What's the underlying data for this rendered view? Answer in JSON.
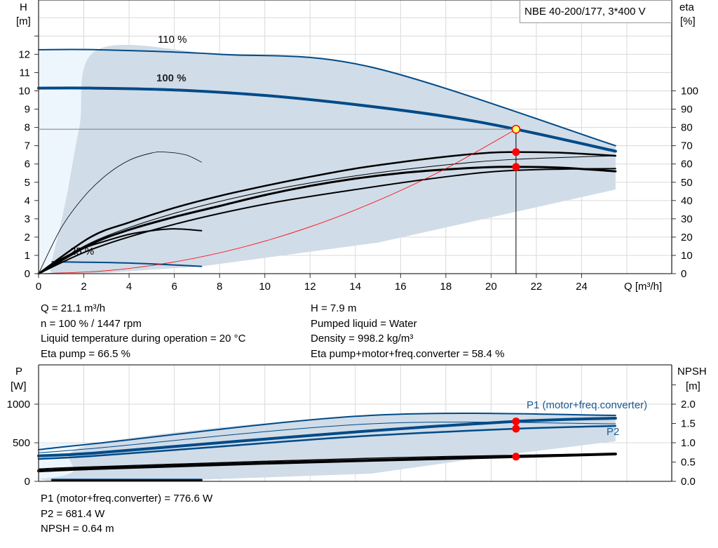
{
  "colors": {
    "blue": "#004a87",
    "band": "#d0dce8",
    "band_light": "#eef6fd",
    "grid": "#d9d9d9",
    "duty_point": "#ff0000",
    "op_point": "#ffff66",
    "system_curve": "#ff0000"
  },
  "chart_data": [
    {
      "type": "line",
      "title": "NBE 40-200/177, 3*400 V",
      "xlabel": "Q [m³/h]",
      "ylabel": [
        "H",
        "[m]"
      ],
      "y2label": [
        "eta",
        "[%]"
      ],
      "xlim": [
        0,
        28
      ],
      "ylim": [
        0,
        15
      ],
      "y2lim": [
        0,
        150
      ],
      "xticks": [
        0,
        2,
        4,
        6,
        8,
        10,
        12,
        14,
        16,
        18,
        20,
        22,
        24
      ],
      "yticks": [
        0,
        1,
        2,
        3,
        4,
        5,
        6,
        7,
        8,
        9,
        10,
        11,
        12
      ],
      "y2ticks": [
        0,
        10,
        20,
        30,
        40,
        50,
        60,
        70,
        80,
        90,
        100
      ],
      "grid": true,
      "series": [
        {
          "name": "110 %",
          "axis": "H",
          "color": "#004a87",
          "width": 2,
          "points": [
            [
              0,
              12.25
            ],
            [
              2.6,
              12.25
            ],
            [
              8,
              12.0
            ],
            [
              14.7,
              11.3
            ],
            [
              25.5,
              7.0
            ]
          ]
        },
        {
          "name": "100 %",
          "axis": "H",
          "color": "#004a87",
          "width": 4,
          "points": [
            [
              0,
              10.15
            ],
            [
              2.4,
              10.15
            ],
            [
              6,
              10.05
            ],
            [
              10,
              9.75
            ],
            [
              14,
              9.25
            ],
            [
              18,
              8.6
            ],
            [
              21.1,
              7.9
            ],
            [
              25.5,
              6.7
            ]
          ]
        },
        {
          "name": "25 %",
          "axis": "H",
          "color": "#004a87",
          "width": 2,
          "points": [
            [
              0.6,
              0.65
            ],
            [
              4,
              0.58
            ],
            [
              7.2,
              0.4
            ]
          ]
        },
        {
          "axis": "eta",
          "color": "#000",
          "width": 2.5,
          "points": [
            [
              0,
              0
            ],
            [
              2.3,
              20
            ],
            [
              4,
              28
            ],
            [
              6,
              36
            ],
            [
              8,
              42.5
            ],
            [
              10,
              48
            ],
            [
              12,
              53
            ],
            [
              14,
              57.5
            ],
            [
              16,
              61
            ],
            [
              18,
              64
            ],
            [
              20,
              66.2
            ],
            [
              21.1,
              66.5
            ],
            [
              23,
              66.2
            ],
            [
              25.5,
              64.5
            ]
          ]
        },
        {
          "axis": "eta",
          "color": "#000",
          "width": 1,
          "points": [
            [
              0,
              0
            ],
            [
              2.5,
              18
            ],
            [
              6,
              33
            ],
            [
              10,
              45
            ],
            [
              14,
              53.5
            ],
            [
              18,
              59.5
            ],
            [
              21,
              62.5
            ],
            [
              25.5,
              64.5
            ]
          ]
        },
        {
          "axis": "eta",
          "color": "#000",
          "width": 3,
          "points": [
            [
              0,
              0
            ],
            [
              2.3,
              16
            ],
            [
              4,
              24
            ],
            [
              6,
              31
            ],
            [
              8,
              37
            ],
            [
              10,
              43
            ],
            [
              12,
              48
            ],
            [
              14,
              52
            ],
            [
              16,
              55
            ],
            [
              18,
              57
            ],
            [
              20,
              58.3
            ],
            [
              21.1,
              58.4
            ],
            [
              23,
              58
            ],
            [
              25.5,
              56
            ]
          ]
        },
        {
          "axis": "eta",
          "color": "#000",
          "width": 2,
          "points": [
            [
              0,
              0
            ],
            [
              2.5,
              14
            ],
            [
              6,
              27
            ],
            [
              10,
              38
            ],
            [
              14,
              46
            ],
            [
              18,
              53
            ],
            [
              21,
              56.5
            ],
            [
              25.5,
              57.5
            ]
          ]
        },
        {
          "axis": "eta",
          "color": "#000",
          "width": 0.8,
          "points": [
            [
              0,
              0
            ],
            [
              1,
              25
            ],
            [
              2,
              42
            ],
            [
              3,
              54
            ],
            [
              4,
              62
            ],
            [
              5,
              66
            ],
            [
              5.6,
              66.5
            ],
            [
              6.5,
              65
            ],
            [
              7.2,
              61
            ]
          ]
        },
        {
          "axis": "eta",
          "color": "#000",
          "width": 2,
          "points": [
            [
              0,
              0
            ],
            [
              1,
              8
            ],
            [
              2,
              14
            ],
            [
              3,
              18
            ],
            [
              4,
              21.5
            ],
            [
              5,
              23.5
            ],
            [
              6,
              24.5
            ],
            [
              7.2,
              23.5
            ]
          ]
        }
      ],
      "system_curve": {
        "axis": "H",
        "points": [
          [
            0,
            0
          ],
          [
            3,
            0.16
          ],
          [
            6,
            0.64
          ],
          [
            9,
            1.44
          ],
          [
            12,
            2.56
          ],
          [
            15,
            4.0
          ],
          [
            18,
            5.75
          ],
          [
            21.1,
            7.9
          ]
        ]
      },
      "envelope": {
        "upper": [
          [
            0.5,
            0.2
          ],
          [
            1.2,
            4
          ],
          [
            1.8,
            8
          ],
          [
            2.6,
            12.25
          ],
          [
            8,
            12.0
          ],
          [
            14.7,
            11.3
          ],
          [
            25.5,
            7.0
          ]
        ],
        "lower": [
          [
            25.5,
            4.6
          ],
          [
            15,
            1.7
          ],
          [
            7.2,
            0.4
          ],
          [
            3,
            0.05
          ],
          [
            0.6,
            0
          ]
        ]
      },
      "operating_point": {
        "Q": 21.1,
        "H": 7.9,
        "eta_pump": 66.5,
        "eta_total": 58.4
      }
    },
    {
      "type": "line",
      "ylabel": [
        "P",
        "[W]"
      ],
      "y2label": [
        "NPSH",
        "[m]"
      ],
      "xlim": [
        0,
        28
      ],
      "ylim": [
        0,
        1500
      ],
      "y2lim": [
        0,
        3
      ],
      "yticks": [
        0,
        500,
        1000
      ],
      "y2ticks": [
        0.0,
        0.5,
        1.0,
        1.5,
        2.0
      ],
      "y2ticklabels": [
        "0.0",
        "0.5",
        "1.0",
        "1.5",
        "2.0"
      ],
      "grid": true,
      "series": [
        {
          "axis": "P",
          "color": "#004a87",
          "width": 2,
          "points": [
            [
              0,
              410
            ],
            [
              2.55,
              491
            ],
            [
              14.7,
              855
            ],
            [
              25.5,
              855
            ]
          ]
        },
        {
          "axis": "P",
          "color": "#004a87",
          "width": 1,
          "points": [
            [
              0,
              370
            ],
            [
              2.55,
              430
            ],
            [
              14.7,
              745
            ],
            [
              25.5,
              745
            ]
          ]
        },
        {
          "name": "P1 (motor+freq.converter)",
          "axis": "P",
          "color": "#004a87",
          "width": 4,
          "points": [
            [
              0,
              330
            ],
            [
              2.36,
              364
            ],
            [
              8,
              500
            ],
            [
              14,
              640
            ],
            [
              21.1,
              776.6
            ],
            [
              25.5,
              818
            ]
          ]
        },
        {
          "name": "P2",
          "axis": "P",
          "color": "#004a87",
          "width": 2.5,
          "points": [
            [
              0,
              290
            ],
            [
              2.36,
              327
            ],
            [
              8,
              450
            ],
            [
              14,
              580
            ],
            [
              21.1,
              681.4
            ],
            [
              25.5,
              718
            ]
          ]
        },
        {
          "axis": "P",
          "color": "#004a87",
          "width": 3,
          "points": [
            [
              0.6,
              20
            ],
            [
              7.2,
              20
            ]
          ]
        },
        {
          "axis": "NPSH",
          "color": "#000",
          "width": 1.5,
          "points": [
            [
              0,
              0.32
            ],
            [
              2.55,
              0.38
            ],
            [
              14.7,
              0.6
            ],
            [
              25.5,
              0.72
            ]
          ]
        },
        {
          "axis": "NPSH",
          "color": "#000",
          "width": 4,
          "points": [
            [
              0,
              0.27
            ],
            [
              2.36,
              0.33
            ],
            [
              10,
              0.47
            ],
            [
              21.1,
              0.64
            ],
            [
              25.5,
              0.71
            ]
          ]
        },
        {
          "axis": "NPSH",
          "color": "#000",
          "width": 2.5,
          "points": [
            [
              0.6,
              0.02
            ],
            [
              7.2,
              0.02
            ]
          ]
        }
      ],
      "envelope": {
        "upper": [
          [
            0,
            30
          ],
          [
            1.5,
            120
          ],
          [
            2.55,
            491
          ],
          [
            14.7,
            855
          ],
          [
            25.5,
            855
          ]
        ],
        "lower": [
          [
            25.5,
            520
          ],
          [
            20,
            320
          ],
          [
            14.7,
            100
          ],
          [
            7,
            20
          ],
          [
            0.5,
            0
          ]
        ]
      },
      "operating_point": {
        "Q": 21.1,
        "P1": 776.6,
        "P2": 681.4,
        "NPSH": 0.64
      }
    }
  ],
  "info_top_left": [
    "Q = 21.1 m³/h",
    "n = 100 % / 1447 rpm",
    "Liquid temperature during operation = 20 °C",
    "Eta pump = 66.5 %"
  ],
  "info_top_right": [
    "H = 7.9 m",
    "Pumped liquid = Water",
    "Density = 998.2 kg/m³",
    "Eta pump+motor+freq.converter = 58.4 %"
  ],
  "info_bottom": [
    "P1 (motor+freq.converter) = 776.6 W",
    "P2 = 681.4 W",
    "NPSH = 0.64 m"
  ]
}
